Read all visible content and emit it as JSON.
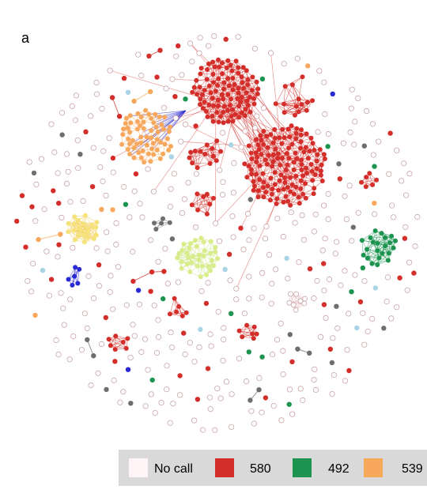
{
  "panel_label": "a",
  "legend": {
    "items": [
      {
        "label": "No call",
        "color": "#fff5f7"
      },
      {
        "label": "580",
        "color": "#d42e2a"
      },
      {
        "label": "492",
        "color": "#1c9450"
      },
      {
        "label": "539",
        "color": "#f7a85c"
      }
    ]
  }
}
